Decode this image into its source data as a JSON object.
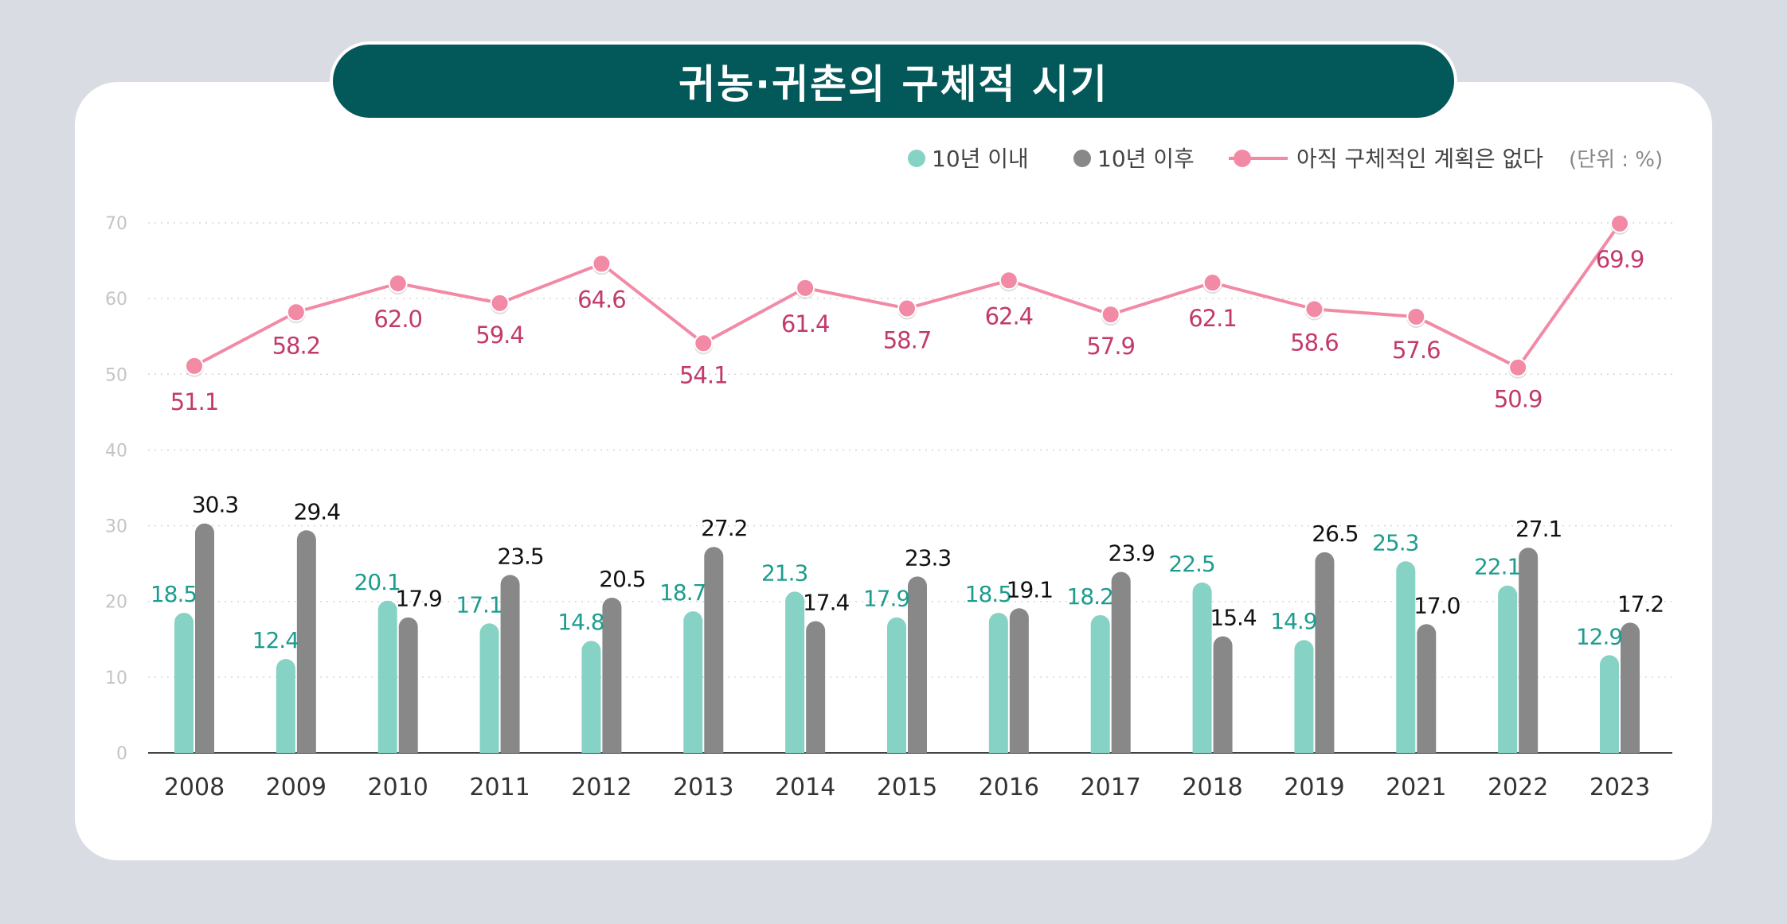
{
  "colors": {
    "within10": "#86d2c5",
    "after10": "#888888",
    "noPlan": "#f28aa6",
    "title_bg": "#03585a",
    "label_green": "#1e9c8e",
    "label_pink": "#c23a6c"
  },
  "chart_data": {
    "type": "bar",
    "title": "귀농·귀촌의 구체적 시기",
    "unit": "(단위 : %)",
    "ylim": [
      0,
      70
    ],
    "yticks": [
      "0",
      "10",
      "20",
      "30",
      "40",
      "50",
      "60",
      "70"
    ],
    "categories": [
      "2008",
      "2009",
      "2010",
      "2011",
      "2012",
      "2013",
      "2014",
      "2015",
      "2016",
      "2017",
      "2018",
      "2019",
      "2021",
      "2022",
      "2023"
    ],
    "series": [
      {
        "name": "10년 이내",
        "type": "bar",
        "values": [
          18.5,
          12.4,
          20.1,
          17.1,
          14.8,
          18.7,
          21.3,
          17.9,
          18.5,
          18.2,
          22.5,
          14.9,
          25.3,
          22.1,
          12.9
        ],
        "labels": [
          "18.5",
          "12.4",
          "20.1",
          "17.1",
          "14.8",
          "18.7",
          "21.3",
          "17.9",
          "18.5",
          "18.2",
          "22.5",
          "14.9",
          "25.3",
          "22.1",
          "12.9"
        ]
      },
      {
        "name": "10년 이후",
        "type": "bar",
        "values": [
          30.3,
          29.4,
          17.9,
          23.5,
          20.5,
          27.2,
          17.4,
          23.3,
          19.1,
          23.9,
          15.4,
          26.5,
          17.0,
          27.1,
          17.2
        ],
        "labels": [
          "30.3",
          "29.4",
          "17.9",
          "23.5",
          "20.5",
          "27.2",
          "17.4",
          "23.3",
          "19.1",
          "23.9",
          "15.4",
          "26.5",
          "17.0",
          "27.1",
          "17.2"
        ]
      },
      {
        "name": "아직 구체적인 계획은 없다",
        "type": "line",
        "values": [
          51.1,
          58.2,
          62.0,
          59.4,
          64.6,
          54.1,
          61.4,
          58.7,
          62.4,
          57.9,
          62.1,
          58.6,
          57.6,
          50.9,
          69.9
        ],
        "labels": [
          "51.1",
          "58.2",
          "62.0",
          "59.4",
          "64.6",
          "54.1",
          "61.4",
          "58.7",
          "62.4",
          "57.9",
          "62.1",
          "58.6",
          "57.6",
          "50.9",
          "69.9"
        ]
      }
    ]
  }
}
